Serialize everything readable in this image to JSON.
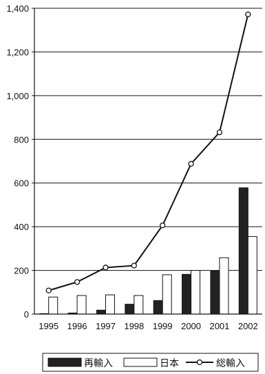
{
  "chart_data": {
    "type": "bar",
    "categories": [
      "1995",
      "1996",
      "1997",
      "1998",
      "1999",
      "2000",
      "2001",
      "2002"
    ],
    "series": [
      {
        "name": "再輸入",
        "kind": "bar",
        "color": "#222222",
        "values": [
          2,
          5,
          18,
          45,
          62,
          182,
          197,
          578
        ]
      },
      {
        "name": "日本",
        "kind": "bar",
        "color": "#ffffff",
        "values": [
          78,
          85,
          88,
          85,
          180,
          200,
          258,
          355
        ]
      },
      {
        "name": "総輸入",
        "kind": "line",
        "color": "#111111",
        "values": [
          108,
          147,
          213,
          222,
          406,
          688,
          832,
          1372
        ]
      }
    ],
    "y_ticks": [
      "0",
      "200",
      "400",
      "600",
      "800",
      "1,000",
      "1,200",
      "1,400"
    ],
    "ylim": [
      0,
      1400
    ],
    "grid": "horizontal",
    "legend_position": "bottom"
  }
}
